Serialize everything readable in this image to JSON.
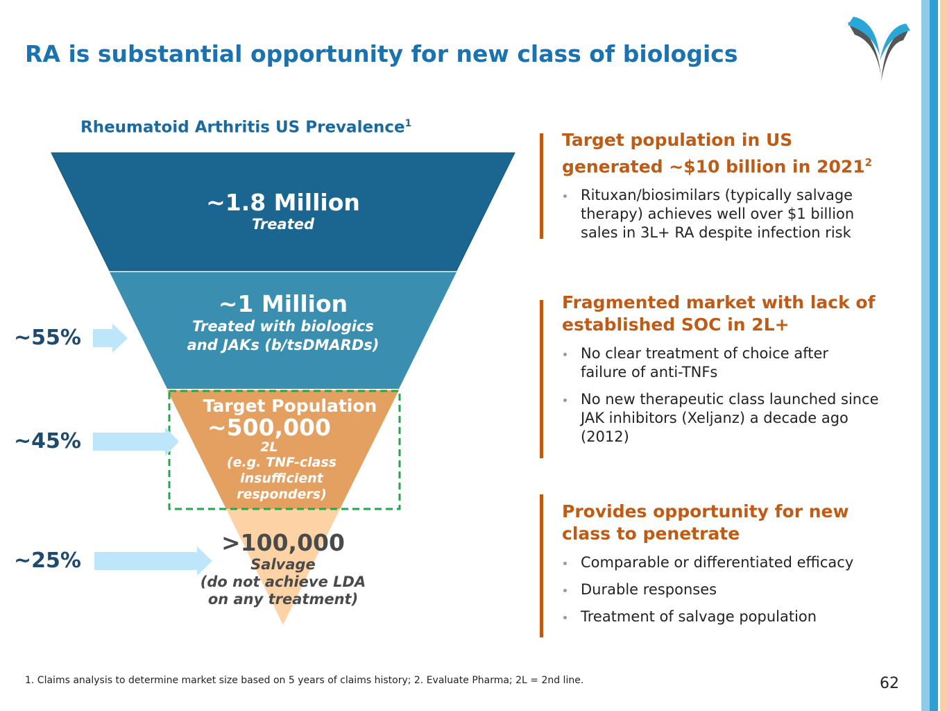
{
  "header": {
    "title": "RA is substantial opportunity for new class of biologics"
  },
  "funnel": {
    "title": "Rheumatoid Arthritis US Prevalence",
    "title_note": "1",
    "levels": [
      {
        "value": "~1.8 Million",
        "label": "Treated"
      },
      {
        "value": "~1 Million",
        "label": "Treated with biologics and JAKs (b/tsDMARDs)"
      },
      {
        "heading": "Target Population",
        "value": "~500,000",
        "label": "2L",
        "detail": "(e.g. TNF-class insufficient responders)"
      },
      {
        "value": ">100,000",
        "label": "Salvage",
        "detail": "(do not achieve LDA on any treatment)"
      }
    ],
    "shares": [
      "~55%",
      "~45%",
      "~25%"
    ]
  },
  "sections": [
    {
      "heading": "Target population in US generated ~$10 billion in 2021",
      "heading_note": "2",
      "bullets": [
        "Rituxan/biosimilars (typically salvage therapy) achieves well over $1 billion sales in 3L+ RA despite infection risk"
      ]
    },
    {
      "heading": "Fragmented market with lack of established SOC in 2L+",
      "bullets": [
        "No clear treatment of choice after failure of anti-TNFs",
        "No new therapeutic class launched since JAK inhibitors (Xeljanz) a decade ago (2012)"
      ]
    },
    {
      "heading": "Provides opportunity for new class to penetrate",
      "bullets": [
        "Comparable or differentiated efficacy",
        "Durable responses",
        "Treatment of salvage population"
      ]
    }
  ],
  "footer": {
    "note": "1. Claims analysis to determine market size based on 5 years of claims history; 2. Evaluate Pharma; 2L = 2nd line.",
    "page": "62"
  }
}
